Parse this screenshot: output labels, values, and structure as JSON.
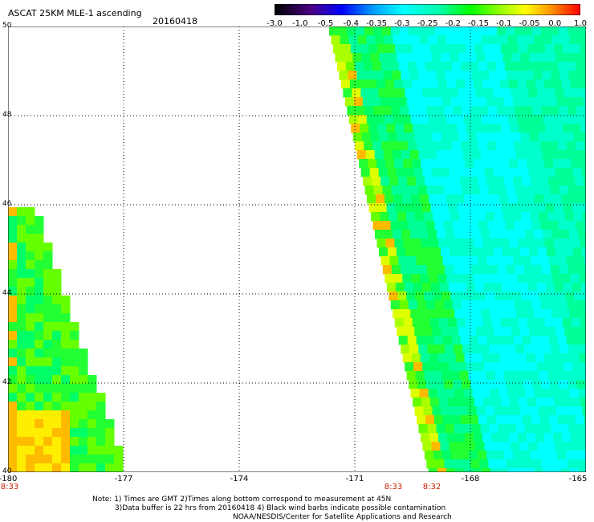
{
  "title": "ASCAT 25KM MLE-1 ascending",
  "date": "20160418",
  "colorbar": {
    "ticks": [
      "-3.0",
      "-1.0",
      "-0.5",
      "-0.4",
      "-0.35",
      "-0.3",
      "-0.25",
      "-0.2",
      "-0.15",
      "-0.1",
      "-0.05",
      "0.0",
      "1.0"
    ],
    "colors": [
      "#000000",
      "#5500aa",
      "#0000ff",
      "#0088ff",
      "#00ffff",
      "#00ff88",
      "#00ff00",
      "#88ff00",
      "#ffff00",
      "#ff9900",
      "#ff0000"
    ]
  },
  "map": {
    "lat_labels": [
      "50",
      "48",
      "46",
      "44",
      "42",
      "40"
    ],
    "lon_labels": [
      "-180",
      "-177",
      "-174",
      "-171",
      "-168",
      "-165"
    ],
    "lat_range": [
      40,
      50
    ],
    "lon_range": [
      -180,
      -165
    ],
    "grid": true,
    "swaths": [
      {
        "name": "west-swath",
        "shape": "triangle"
      },
      {
        "name": "east-swath",
        "shape": "band"
      }
    ]
  },
  "times": [
    {
      "label": "8:33",
      "lon": -180
    },
    {
      "label": "8:33",
      "lon": -170
    },
    {
      "label": "8:32",
      "lon": -169
    }
  ],
  "notes": [
    "Note: 1) Times are GMT  2)Times along bottom correspond to measurement at 45N",
    "3)Data buffer is 22 hrs from 20160418   4) Black wind barbs indicate possible contamination",
    "NOAA/NESDIS/Center for Satellite Applications and Research"
  ]
}
